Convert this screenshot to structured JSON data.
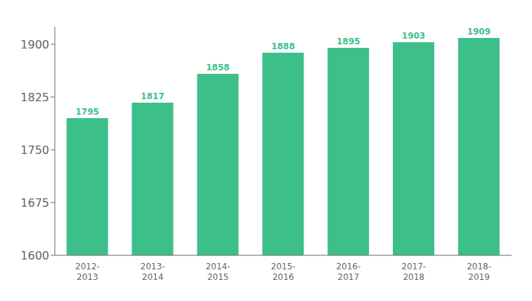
{
  "chart_data": {
    "type": "bar",
    "categories": [
      "2012-\n2013",
      "2013-\n2014",
      "2014-\n2015",
      "2015-\n2016",
      "2016-\n2017",
      "2017-\n2018",
      "2018-\n2019"
    ],
    "values": [
      1795,
      1817,
      1858,
      1888,
      1895,
      1903,
      1909
    ],
    "color": "#3dbf8a",
    "ylim": [
      1600,
      1925
    ],
    "yticks": [
      1600,
      1675,
      1750,
      1825,
      1900
    ],
    "grid": false,
    "data_labels": true
  }
}
